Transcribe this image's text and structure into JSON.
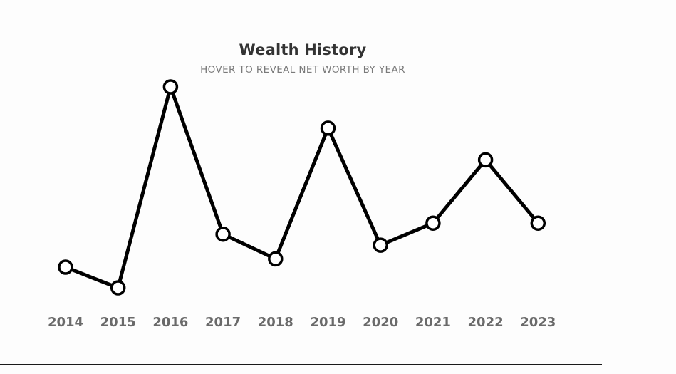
{
  "header": {
    "title": "Wealth History",
    "subtitle": "HOVER TO REVEAL NET WORTH BY YEAR"
  },
  "colors": {
    "line": "#000000",
    "marker_fill": "#ffffff",
    "tick_text": "#6a6a6a",
    "title": "#333333",
    "subtitle": "#7a7a7a"
  },
  "chart_data": {
    "type": "line",
    "title": "Wealth History",
    "subtitle": "HOVER TO REVEAL NET WORTH BY YEAR",
    "xlabel": "",
    "ylabel": "",
    "categories": [
      "2014",
      "2015",
      "2016",
      "2017",
      "2018",
      "2019",
      "2020",
      "2021",
      "2022",
      "2023"
    ],
    "series": [
      {
        "values": [
          15,
          0,
          146,
          39,
          21,
          116,
          31,
          47,
          93,
          47
        ]
      }
    ],
    "ylim": [
      0,
      146
    ],
    "y_axis_visible": false,
    "grid": false,
    "legend": "none"
  }
}
